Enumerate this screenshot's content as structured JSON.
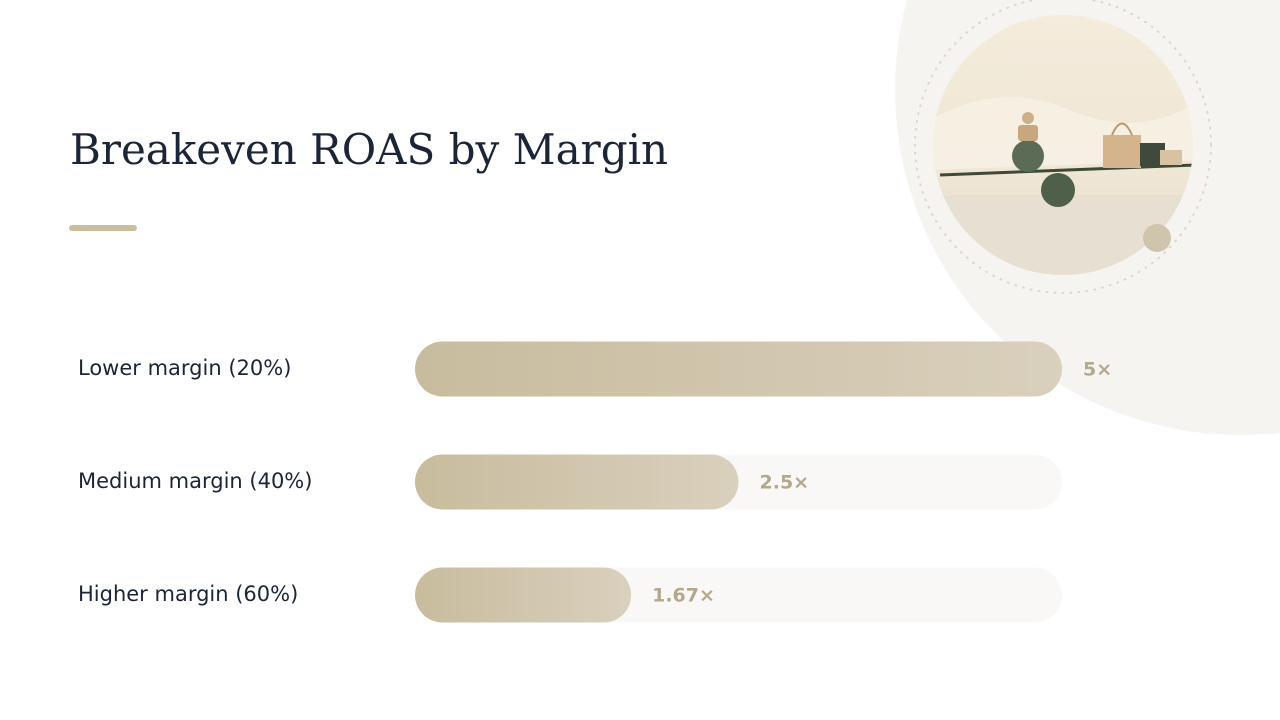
{
  "chart_data": {
    "type": "bar",
    "orientation": "horizontal",
    "title": "Breakeven ROAS by Margin",
    "categories": [
      "Lower margin (20%)",
      "Medium margin (40%)",
      "Higher margin (60%)"
    ],
    "values": [
      5,
      2.5,
      1.67
    ],
    "value_labels": [
      "5×",
      "2.5×",
      "1.67×"
    ],
    "xlim": [
      0,
      5
    ],
    "color": "#cbbfa3"
  }
}
